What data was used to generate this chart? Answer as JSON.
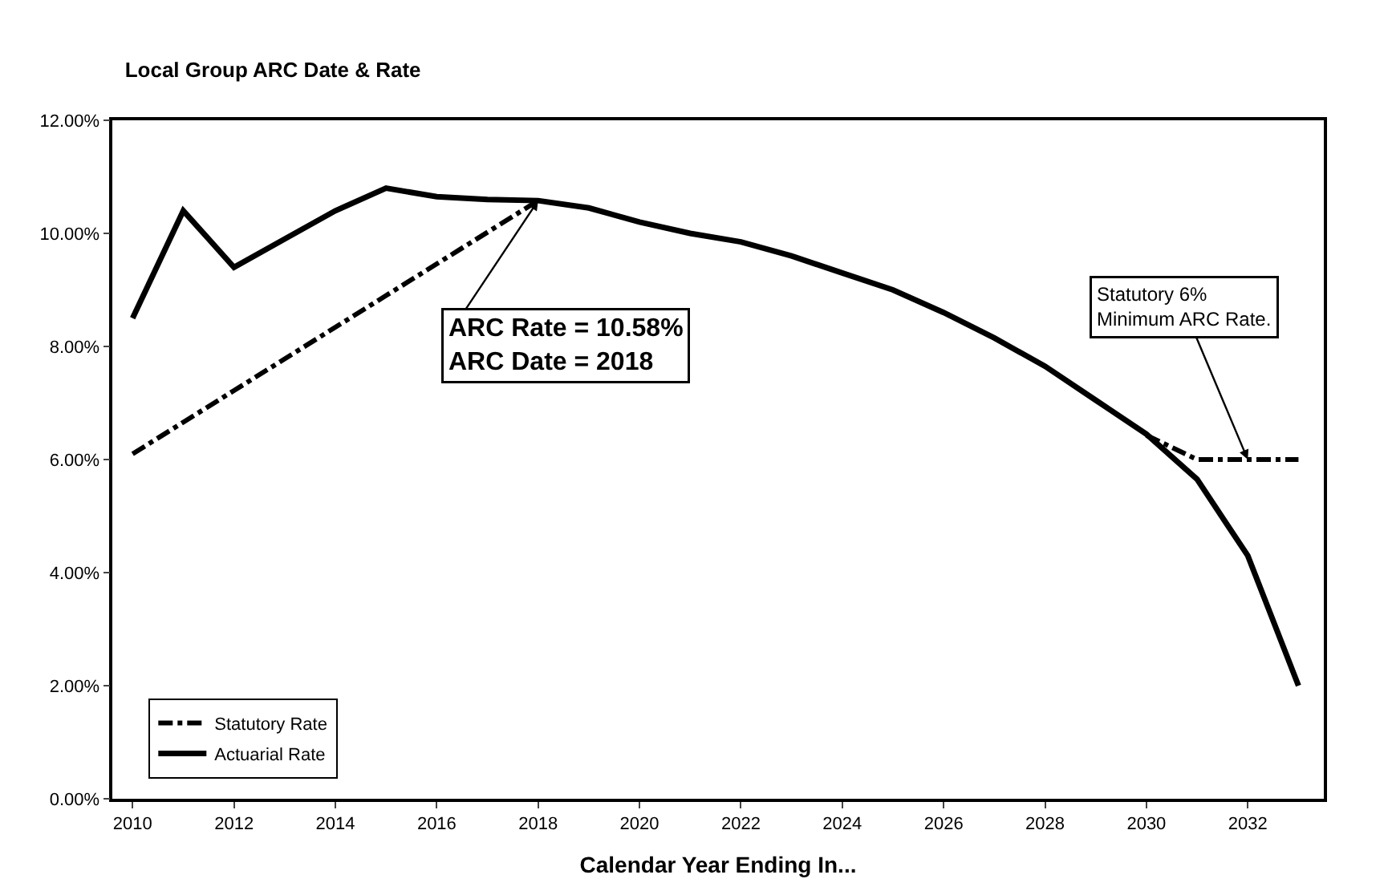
{
  "chart_data": {
    "type": "line",
    "title": "Local Group ARC Date & Rate",
    "xlabel": "Calendar Year Ending In...",
    "x": [
      2010,
      2011,
      2012,
      2013,
      2014,
      2015,
      2016,
      2017,
      2018,
      2019,
      2020,
      2021,
      2022,
      2023,
      2024,
      2025,
      2026,
      2027,
      2028,
      2029,
      2030,
      2031,
      2032,
      2033
    ],
    "series": [
      {
        "name": "Statutory Rate",
        "color": "#000000",
        "line_style": "dashdot",
        "values": [
          6.1,
          6.66,
          7.22,
          7.78,
          8.34,
          8.9,
          9.46,
          10.02,
          10.58,
          null,
          null,
          null,
          null,
          null,
          null,
          null,
          null,
          null,
          null,
          null,
          6.43,
          6.0,
          6.0,
          6.0
        ]
      },
      {
        "name": "Actuarial Rate",
        "color": "#000000",
        "line_style": "solid",
        "values": [
          8.5,
          10.4,
          9.4,
          9.9,
          10.4,
          10.8,
          10.65,
          10.6,
          10.58,
          10.45,
          10.2,
          10.0,
          9.85,
          9.6,
          9.3,
          9.0,
          8.6,
          8.15,
          7.65,
          7.05,
          6.45,
          5.65,
          4.3,
          2.0
        ]
      }
    ],
    "xlim": [
      2009.6,
      2033.5
    ],
    "xticks": [
      2010,
      2012,
      2014,
      2016,
      2018,
      2020,
      2022,
      2024,
      2026,
      2028,
      2030,
      2032
    ],
    "ylim": [
      0,
      12
    ],
    "yticks": [
      {
        "value": 0,
        "label": "0.00%"
      },
      {
        "value": 2,
        "label": "2.00%"
      },
      {
        "value": 4,
        "label": "4.00%"
      },
      {
        "value": 6,
        "label": "6.00%"
      },
      {
        "value": 8,
        "label": "8.00%"
      },
      {
        "value": 10,
        "label": "10.00%"
      },
      {
        "value": 12,
        "label": "12.00%"
      }
    ],
    "annotations": [
      {
        "text": "ARC Rate = 10.58%\nARC Date = 2018",
        "x": 2018,
        "y": 10.58
      },
      {
        "text": "Statutory 6%\nMinimum ARC Rate.",
        "x": 2032,
        "y": 6.0
      }
    ],
    "legend": "bottom left",
    "marker": "none"
  }
}
